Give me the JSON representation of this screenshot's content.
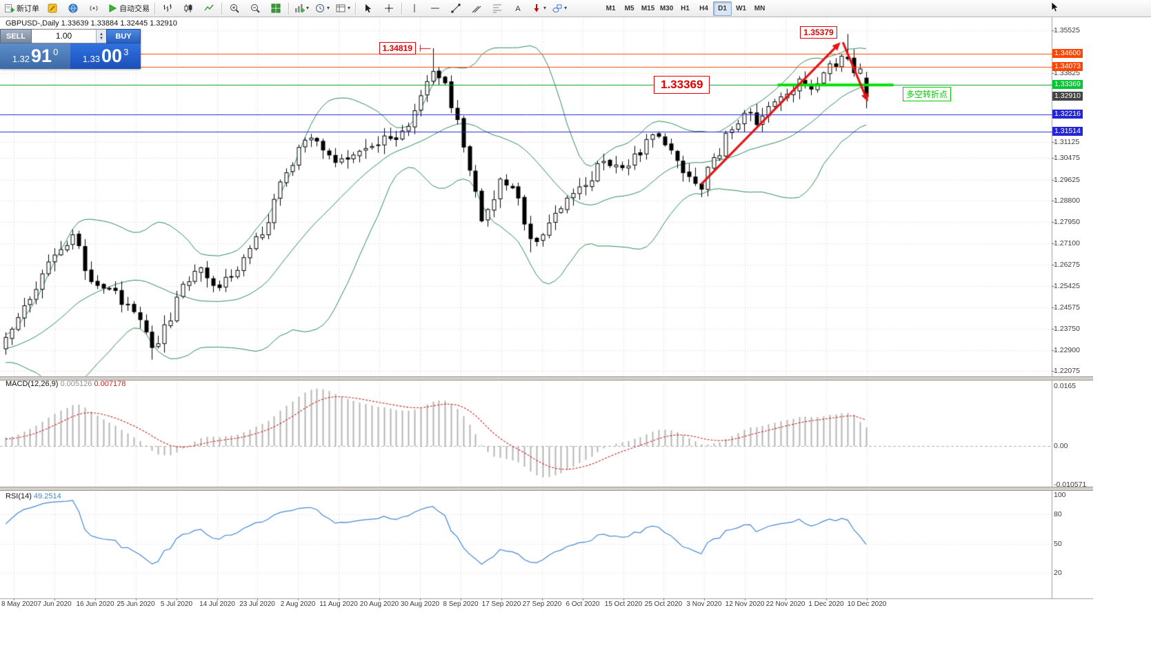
{
  "toolbar": {
    "items": [
      {
        "name": "new-order-button",
        "icon": "new-order-icon",
        "label": "新订单"
      },
      {
        "name": "metaeditor-button",
        "icon": "metaeditor-icon"
      },
      {
        "name": "community-button",
        "icon": "community-icon"
      },
      {
        "name": "signals-button",
        "icon": "signals-icon"
      },
      {
        "name": "autotrade-button",
        "icon": "autotrade-play-icon",
        "label": "自动交易"
      },
      {
        "sep": true
      },
      {
        "name": "bar-chart-button",
        "icon": "bars-chart-icon"
      },
      {
        "name": "candle-chart-button",
        "icon": "candles-chart-icon"
      },
      {
        "name": "line-chart-button",
        "icon": "line-chart-icon"
      },
      {
        "sep": true
      },
      {
        "name": "zoom-in-button",
        "icon": "zoom-in-icon"
      },
      {
        "name": "zoom-out-button",
        "icon": "zoom-out-icon"
      },
      {
        "name": "tile-windows-button",
        "icon": "tile-windows-icon"
      },
      {
        "sep": true
      },
      {
        "name": "indicators-button",
        "icon": "indicators-icon",
        "caret": true
      },
      {
        "name": "periods-button",
        "icon": "periods-icon",
        "caret": true
      },
      {
        "name": "templates-button",
        "icon": "templates-icon",
        "caret": true
      },
      {
        "sep": true
      },
      {
        "name": "cursor-button",
        "icon": "cursor-icon"
      },
      {
        "name": "crosshair-button",
        "icon": "crosshair-icon"
      },
      {
        "sep": true
      },
      {
        "name": "vertical-line-button",
        "icon": "vline-icon"
      },
      {
        "name": "horizontal-line-button",
        "icon": "hline-icon"
      },
      {
        "name": "trendline-button",
        "icon": "trendline-icon"
      },
      {
        "name": "channel-button",
        "icon": "channel-icon"
      },
      {
        "name": "fibonacci-button",
        "icon": "fibo-icon"
      },
      {
        "name": "text-button",
        "icon": "text-icon"
      },
      {
        "name": "arrows-button",
        "icon": "arrows-icon",
        "caret": true
      },
      {
        "name": "shapes-button",
        "icon": "shapes-icon",
        "caret": true
      }
    ],
    "timeframes": [
      {
        "label": "M1"
      },
      {
        "label": "M5"
      },
      {
        "label": "M15"
      },
      {
        "label": "M30"
      },
      {
        "label": "H1"
      },
      {
        "label": "H4"
      },
      {
        "label": "D1",
        "active": true
      },
      {
        "label": "W1"
      },
      {
        "label": "MN"
      }
    ]
  },
  "chart": {
    "title": "GBPUSD-,Daily 1.33639 1.33884 1.32445 1.32910",
    "symbol": "GBPUSD-",
    "period": "Daily"
  },
  "one_click": {
    "sell_label": "SELL",
    "buy_label": "BUY",
    "volume": "1.00",
    "sell_price": {
      "small": "1.32",
      "big": "91",
      "sup": "0"
    },
    "buy_price": {
      "small": "1.33",
      "big": "00",
      "sup": "3"
    }
  },
  "annotations": {
    "high1": "1.34819",
    "high2": "1.35379",
    "pivot": "1.33369",
    "pivot_note": "多空转折点",
    "note_color": "#00cc00",
    "label_color": "#e40000"
  },
  "indicators": {
    "macd_label": "MACD(12,26,9)",
    "macd_value": "0.005126",
    "macd_signal": "0.007178",
    "rsi_label": "RSI(14)",
    "rsi_value": "49.2514"
  },
  "axis": {
    "price_labels": [
      "1.35525",
      "1.33825",
      "1.31125",
      "1.30475",
      "1.29625",
      "1.28800",
      "1.27950",
      "1.27100",
      "1.26275",
      "1.25425",
      "1.24575",
      "1.23750",
      "1.22900",
      "1.22075"
    ],
    "price_tags": [
      {
        "value": "1.34600",
        "color": "#ff4500"
      },
      {
        "value": "1.34073",
        "color": "#ff4500"
      },
      {
        "value": "1.33369",
        "color": "#00c832"
      },
      {
        "value": "1.32910",
        "color": "#454545"
      },
      {
        "value": "1.32216",
        "color": "#2424d8"
      },
      {
        "value": "1.31514",
        "color": "#2424d8"
      }
    ],
    "macd_labels": [
      "0.0165",
      "0.00",
      "-0.010571"
    ],
    "rsi_labels": [
      "100",
      "80",
      "50",
      "20"
    ],
    "dates": [
      "8 May 2020",
      "7 Jun 2020",
      "16 Jun 2020",
      "25 Jun 2020",
      "5 Jul 2020",
      "14 Jul 2020",
      "23 Jul 2020",
      "2 Aug 2020",
      "11 Aug 2020",
      "20 Aug 2020",
      "30 Aug 2020",
      "8 Sep 2020",
      "17 Sep 2020",
      "27 Sep 2020",
      "6 Oct 2020",
      "15 Oct 2020",
      "25 Oct 2020",
      "3 Nov 2020",
      "12 Nov 2020",
      "22 Nov 2020",
      "1 Dec 2020",
      "10 Dec 2020"
    ]
  },
  "chart_data": {
    "type": "candlestick",
    "symbol": "GBPUSD-",
    "timeframe": "Daily",
    "current_bar": {
      "open": 1.33639,
      "high": 1.33884,
      "low": 1.32445,
      "close": 1.3291
    },
    "bar_count": 142,
    "price_range": {
      "top": 1.3604,
      "bottom": 1.2186
    },
    "price_anchors": [
      [
        0,
        1.234
      ],
      [
        4,
        1.249
      ],
      [
        8,
        1.2665
      ],
      [
        11,
        1.2745
      ],
      [
        14,
        1.256
      ],
      [
        17,
        1.253
      ],
      [
        19,
        1.247
      ],
      [
        22,
        1.241
      ],
      [
        24,
        1.23
      ],
      [
        27,
        1.2405
      ],
      [
        29,
        1.255
      ],
      [
        32,
        1.2615
      ],
      [
        34,
        1.2545
      ],
      [
        37,
        1.258
      ],
      [
        39,
        1.2655
      ],
      [
        42,
        1.2745
      ],
      [
        44,
        1.2885
      ],
      [
        46,
        1.299
      ],
      [
        48,
        1.309
      ],
      [
        51,
        1.3115
      ],
      [
        53,
        1.306
      ],
      [
        55,
        1.3045
      ],
      [
        58,
        1.3075
      ],
      [
        61,
        1.31
      ],
      [
        63,
        1.3125
      ],
      [
        65,
        1.3155
      ],
      [
        67,
        1.3235
      ],
      [
        69,
        1.335
      ],
      [
        70,
        1.339
      ],
      [
        72,
        1.3345
      ],
      [
        74,
        1.32
      ],
      [
        76,
        1.3
      ],
      [
        78,
        1.28
      ],
      [
        79,
        1.2845
      ],
      [
        81,
        1.2965
      ],
      [
        83,
        1.293
      ],
      [
        86,
        1.273
      ],
      [
        88,
        1.2745
      ],
      [
        90,
        1.283
      ],
      [
        92,
        1.289
      ],
      [
        95,
        1.294
      ],
      [
        98,
        1.3035
      ],
      [
        101,
        1.301
      ],
      [
        104,
        1.306
      ],
      [
        106,
        1.314
      ],
      [
        108,
        1.31
      ],
      [
        111,
        1.299
      ],
      [
        114,
        1.2925
      ],
      [
        116,
        1.305
      ],
      [
        119,
        1.316
      ],
      [
        121,
        1.3225
      ],
      [
        123,
        1.318
      ],
      [
        126,
        1.327
      ],
      [
        128,
        1.33
      ],
      [
        130,
        1.336
      ],
      [
        132,
        1.332
      ],
      [
        135,
        1.342
      ],
      [
        137,
        1.345
      ],
      [
        138,
        1.344
      ],
      [
        139,
        1.3385
      ],
      [
        140,
        1.34
      ],
      [
        141,
        1.3291
      ]
    ],
    "special_bars": {
      "24": {
        "l": 1.2252
      },
      "70": {
        "h": 1.34819
      },
      "86": {
        "l": 1.2676
      },
      "138": {
        "h": 1.35379
      },
      "141": {
        "o": 1.33639,
        "h": 1.33884,
        "l": 1.32445,
        "c": 1.3291
      }
    },
    "overlays": {
      "bollinger": {
        "period": 20,
        "deviation": 2,
        "color": "#2e8b57"
      }
    },
    "hlines": [
      {
        "price": 1.346,
        "color": "#ff4500"
      },
      {
        "price": 1.34073,
        "color": "#ff4500"
      },
      {
        "price": 1.33369,
        "color": "#00a020"
      },
      {
        "price": 1.32216,
        "color": "#2424d8"
      },
      {
        "price": 1.31514,
        "color": "#2424d8"
      }
    ],
    "green_segment": {
      "price": 1.33369,
      "bar_from": 126.5,
      "bar_to": 145.5,
      "color": "#00e000",
      "width": 4
    },
    "arrows": {
      "color": "#e51414",
      "list": [
        {
          "from_bar": 114,
          "from_price": 1.2945,
          "to_bar": 136.8,
          "to_price": 1.3505
        },
        {
          "from_bar": 137.2,
          "from_price": 1.3505,
          "to_bar": 141.3,
          "to_price": 1.327
        }
      ]
    },
    "macd": {
      "params": [
        12,
        26,
        9
      ],
      "value": 0.005126,
      "signal": 0.007178,
      "histogram_color": "#b4b4b4",
      "signal_color": "#cc2222",
      "axis_top": 0.0165,
      "axis_bottom": -0.010571
    },
    "rsi": {
      "period": 14,
      "value": 49.2514,
      "line_color": "#4286d6",
      "levels": [
        80,
        50,
        20
      ]
    }
  }
}
